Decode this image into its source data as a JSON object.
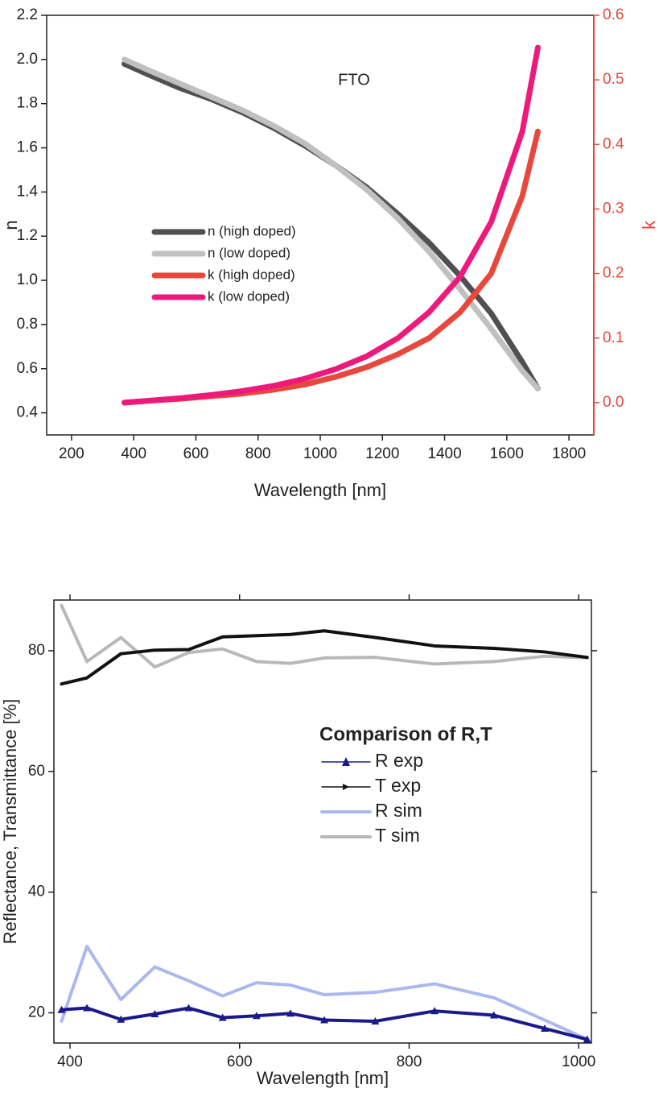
{
  "chart_data": [
    {
      "type": "line",
      "annotation": "FTO",
      "xlabel": "Wavelength [nm]",
      "ylabel": "n",
      "y2label": "k",
      "y2color": "#e8473c",
      "x": [
        370,
        450,
        550,
        650,
        750,
        850,
        950,
        1050,
        1150,
        1250,
        1350,
        1450,
        1550,
        1650,
        1700
      ],
      "xlim": [
        120,
        1880
      ],
      "xticks": [
        200,
        400,
        600,
        800,
        1000,
        1200,
        1400,
        1600,
        1800
      ],
      "ylim": [
        0.3,
        2.2
      ],
      "yticks": [
        0.4,
        0.6,
        0.8,
        {
          "value": 1,
          "label": "1.0"
        },
        1.2,
        1.4,
        1.6,
        1.8,
        {
          "value": 2,
          "label": "2.0"
        },
        2.2
      ],
      "y2lim": [
        -0.05,
        0.6
      ],
      "y2ticks": [
        {
          "value": 0,
          "label": "0.0"
        },
        0.1,
        0.2,
        0.3,
        0.4,
        0.5,
        0.6
      ],
      "series": [
        {
          "name": "n (high doped)",
          "color": "#505050",
          "values": [
            1.98,
            1.93,
            1.87,
            1.82,
            1.76,
            1.69,
            1.61,
            1.52,
            1.42,
            1.3,
            1.17,
            1.02,
            0.85,
            0.63,
            0.51
          ]
        },
        {
          "name": "n (low doped)",
          "color": "#c0c0c0",
          "values": [
            2.0,
            1.95,
            1.89,
            1.83,
            1.77,
            1.7,
            1.62,
            1.52,
            1.41,
            1.28,
            1.13,
            0.96,
            0.78,
            0.59,
            0.51
          ]
        },
        {
          "name": "k (high doped)",
          "color": "#e8473c",
          "axis": "y2",
          "values": [
            0.0,
            0.003,
            0.006,
            0.01,
            0.014,
            0.02,
            0.028,
            0.04,
            0.055,
            0.075,
            0.1,
            0.14,
            0.2,
            0.32,
            0.42
          ]
        },
        {
          "name": "k (low doped)",
          "color": "#ee1a7b",
          "axis": "y2",
          "values": [
            0.0,
            0.003,
            0.007,
            0.012,
            0.018,
            0.026,
            0.037,
            0.052,
            0.072,
            0.1,
            0.14,
            0.195,
            0.28,
            0.42,
            0.55
          ]
        }
      ]
    },
    {
      "type": "line",
      "legend_title": "Comparison of R,T",
      "xlabel": "Wavelength [nm]",
      "ylabel": "Reflectance, Transmittance [%]",
      "x": [
        390,
        420,
        460,
        500,
        540,
        580,
        620,
        660,
        700,
        760,
        830,
        900,
        960,
        1010
      ],
      "xlim": [
        381,
        1015
      ],
      "xticks": [
        400,
        600,
        800,
        1000
      ],
      "ylim": [
        15,
        88.4
      ],
      "yticks": [
        20,
        40,
        60,
        80
      ],
      "series": [
        {
          "name": "R exp",
          "color": "#1a1a8c",
          "marker": "triangle",
          "values": [
            20.5,
            20.8,
            18.9,
            19.8,
            20.8,
            19.2,
            19.5,
            19.9,
            18.8,
            18.6,
            20.3,
            19.6,
            17.4,
            15.6
          ]
        },
        {
          "name": "T exp",
          "color": "#111111",
          "marker": "arrow",
          "values": [
            74.5,
            75.5,
            79.5,
            80.1,
            80.2,
            82.3,
            82.5,
            82.7,
            83.3,
            82.2,
            80.8,
            80.4,
            79.8,
            78.9
          ]
        },
        {
          "name": "R sim",
          "color": "#aab8ee",
          "values": [
            18.6,
            31,
            22.2,
            27.6,
            25.3,
            22.8,
            25,
            24.6,
            23,
            23.4,
            24.8,
            22.5,
            18.8,
            15.6
          ]
        },
        {
          "name": "T sim",
          "color": "#b8b8b8",
          "values": [
            87.5,
            78.2,
            82.2,
            77.3,
            79.7,
            80.3,
            78.2,
            77.9,
            78.8,
            78.9,
            77.8,
            78.2,
            79.1,
            78.8
          ]
        }
      ]
    }
  ]
}
